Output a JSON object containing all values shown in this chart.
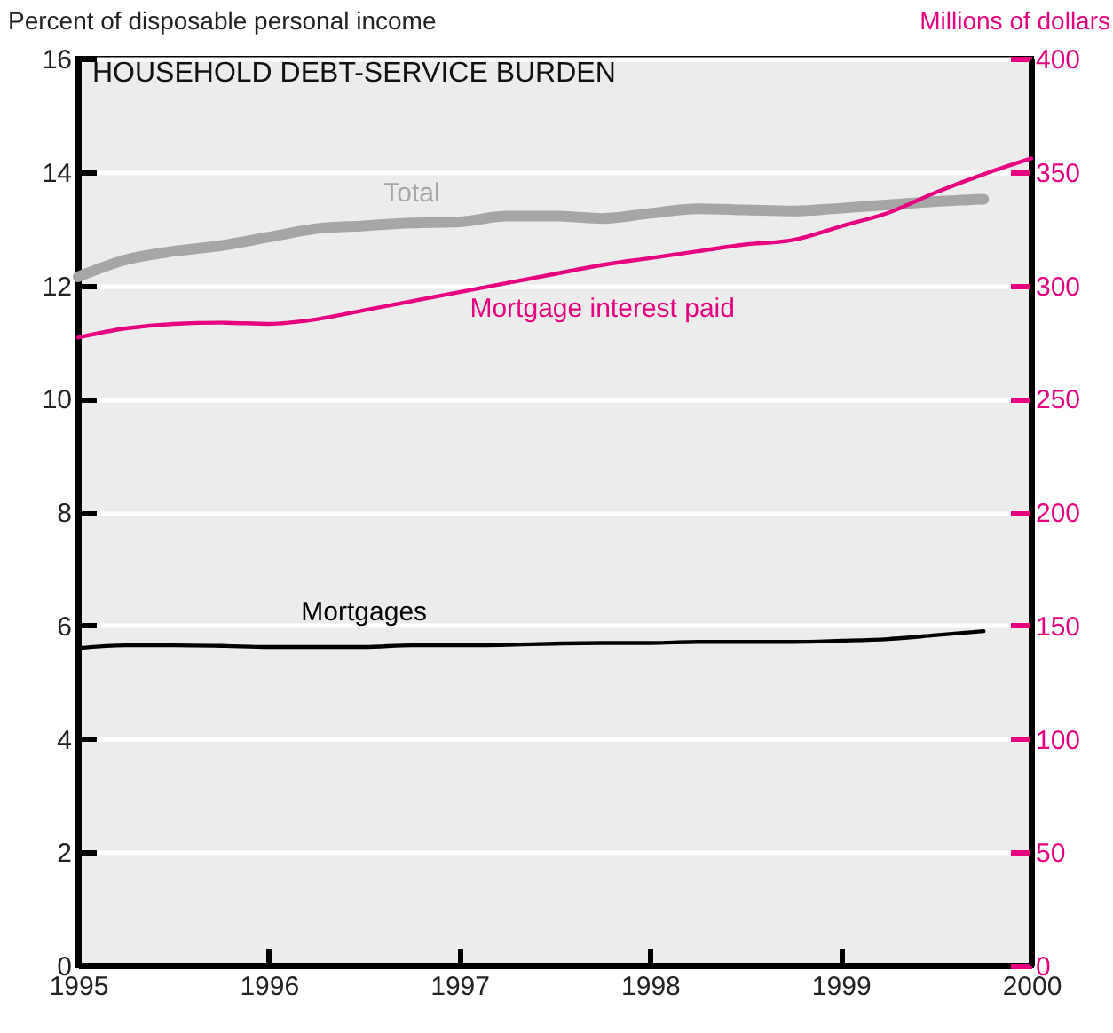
{
  "chart_data": {
    "type": "line",
    "title": "HOUSEHOLD DEBT-SERVICE BURDEN",
    "ylabel": "Percent of disposable personal income",
    "y2label": "Millions of dollars",
    "x": [
      1995,
      1995.25,
      1995.5,
      1995.75,
      1996,
      1996.25,
      1996.5,
      1996.75,
      1997,
      1997.25,
      1997.5,
      1997.75,
      1998,
      1998.25,
      1998.5,
      1998.75,
      1999,
      1999.25,
      1999.5,
      1999.75,
      2000
    ],
    "series": [
      {
        "name": "Total",
        "color": "#a6a6a6",
        "values": [
          12.15,
          12.45,
          12.6,
          12.7,
          12.85,
          13.0,
          13.05,
          13.1,
          13.12,
          13.22,
          13.22,
          13.18,
          13.27,
          13.35,
          13.33,
          13.31,
          13.36,
          13.42,
          13.48,
          13.52,
          null
        ]
      },
      {
        "name": "Mortgage interest paid",
        "color": "#e6007e",
        "axis": "y2",
        "values": [
          277,
          281,
          283,
          283.5,
          283,
          285,
          289,
          293,
          297,
          301,
          305,
          309,
          312,
          315,
          318,
          320,
          326,
          332,
          341,
          349,
          356
        ]
      },
      {
        "name": "Mortgages",
        "color": "#000000",
        "values": [
          5.6,
          5.65,
          5.65,
          5.64,
          5.62,
          5.62,
          5.62,
          5.65,
          5.65,
          5.66,
          5.68,
          5.69,
          5.69,
          5.71,
          5.71,
          5.71,
          5.73,
          5.76,
          5.83,
          5.9,
          null
        ]
      }
    ],
    "xlim": [
      1995,
      2000
    ],
    "xticks": [
      1995,
      1996,
      1997,
      1998,
      1999,
      2000
    ],
    "ylim": [
      0,
      16
    ],
    "yticks": [
      0,
      2,
      4,
      6,
      8,
      10,
      12,
      14,
      16
    ],
    "y2lim": [
      0,
      400
    ],
    "y2ticks": [
      0,
      50,
      100,
      150,
      200,
      250,
      300,
      350,
      400
    ],
    "grid": "y"
  }
}
